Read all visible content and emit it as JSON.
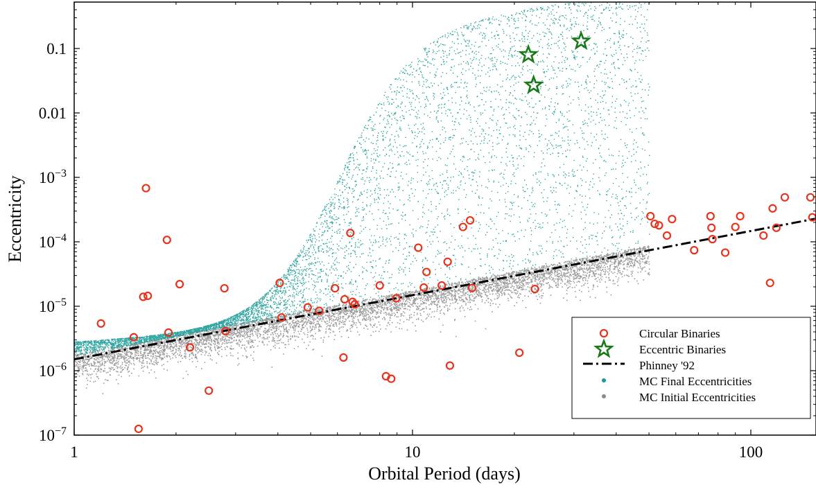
{
  "chart_data": {
    "type": "scatter",
    "xlabel": "Orbital Period (days)",
    "ylabel": "Eccentricity",
    "x_scale": "log",
    "y_scale": "log",
    "xlim": [
      1,
      160
    ],
    "ylim": [
      1e-07,
      0.4
    ],
    "grid": false,
    "legend_position": "bottom-right",
    "x_ticks": [
      {
        "value": 1,
        "label": "1"
      },
      {
        "value": 10,
        "label": "10"
      },
      {
        "value": 100,
        "label": "100"
      }
    ],
    "y_ticks": [
      {
        "value": 1e-07,
        "base": "10",
        "exp": "−7"
      },
      {
        "value": 1e-06,
        "base": "10",
        "exp": "−6"
      },
      {
        "value": 1e-05,
        "base": "10",
        "exp": "−5"
      },
      {
        "value": 0.0001,
        "base": "10",
        "exp": "−4"
      },
      {
        "value": 0.001,
        "base": "10",
        "exp": "−3"
      },
      {
        "value": 0.01,
        "label": "0.01"
      },
      {
        "value": 0.1,
        "label": "0.1"
      }
    ],
    "series": [
      {
        "name": "Circular Binaries",
        "marker": "open-circle",
        "color": "#e8321e",
        "points": [
          [
            1.2,
            5.4e-06
          ],
          [
            1.5,
            3.3e-06
          ],
          [
            1.55,
            1.25e-07
          ],
          [
            1.6,
            1.4e-05
          ],
          [
            1.63,
            0.00068
          ],
          [
            1.65,
            1.45e-05
          ],
          [
            1.88,
            0.000107
          ],
          [
            1.9,
            3.9e-06
          ],
          [
            2.05,
            2.2e-05
          ],
          [
            2.2,
            2.3e-06
          ],
          [
            2.5,
            4.9e-07
          ],
          [
            2.78,
            1.9e-05
          ],
          [
            2.8,
            4.1e-06
          ],
          [
            4.05,
            2.3e-05
          ],
          [
            4.1,
            6.7e-06
          ],
          [
            4.9,
            9.6e-06
          ],
          [
            5.3,
            8.5e-06
          ],
          [
            5.9,
            1.9e-05
          ],
          [
            6.25,
            1.6e-06
          ],
          [
            6.3,
            1.28e-05
          ],
          [
            6.55,
            0.000137
          ],
          [
            6.65,
            1.17e-05
          ],
          [
            6.75,
            1.07e-05
          ],
          [
            8.0,
            2.1e-05
          ],
          [
            8.35,
            8.2e-07
          ],
          [
            8.65,
            7.5e-07
          ],
          [
            8.95,
            1.33e-05
          ],
          [
            10.4,
            8.1e-05
          ],
          [
            10.8,
            1.95e-05
          ],
          [
            11.0,
            3.4e-05
          ],
          [
            12.2,
            2.1e-05
          ],
          [
            12.7,
            4.9e-05
          ],
          [
            12.9,
            1.2e-06
          ],
          [
            14.1,
            0.00017
          ],
          [
            14.8,
            0.000215
          ],
          [
            15.0,
            1.92e-05
          ],
          [
            20.7,
            1.9e-06
          ],
          [
            23.0,
            1.85e-05
          ],
          [
            50.5,
            0.00025
          ],
          [
            52.0,
            0.00019
          ],
          [
            53.5,
            0.00018
          ],
          [
            56.5,
            0.000125
          ],
          [
            58.5,
            0.000225
          ],
          [
            68.0,
            7.4e-05
          ],
          [
            76.0,
            0.00025
          ],
          [
            76.5,
            0.000165
          ],
          [
            77.0,
            0.00011
          ],
          [
            84.0,
            6.8e-05
          ],
          [
            90.0,
            0.00017
          ],
          [
            93.0,
            0.00025
          ],
          [
            109.0,
            0.000125
          ],
          [
            114.0,
            2.3e-05
          ],
          [
            116.0,
            0.00033
          ],
          [
            119.0,
            0.000165
          ],
          [
            126.0,
            0.00049
          ],
          [
            150.0,
            0.00049
          ],
          [
            152.0,
            0.00024
          ]
        ]
      },
      {
        "name": "Eccentric Binaries",
        "marker": "open-star",
        "color": "#1a7a1a",
        "points": [
          [
            22.0,
            0.08
          ],
          [
            22.8,
            0.027
          ],
          [
            31.5,
            0.13
          ]
        ]
      },
      {
        "name": "Phinney '92",
        "marker": "dash-dot-line",
        "color": "#000000",
        "line": [
          [
            1,
            1.5e-06
          ],
          [
            160,
            0.000235
          ]
        ]
      },
      {
        "name": "MC Final Eccentricities",
        "marker": "dot",
        "color": "#1a9a96"
      },
      {
        "name": "MC Initial Eccentricities",
        "marker": "dot",
        "color": "#8a8a8a"
      }
    ]
  }
}
